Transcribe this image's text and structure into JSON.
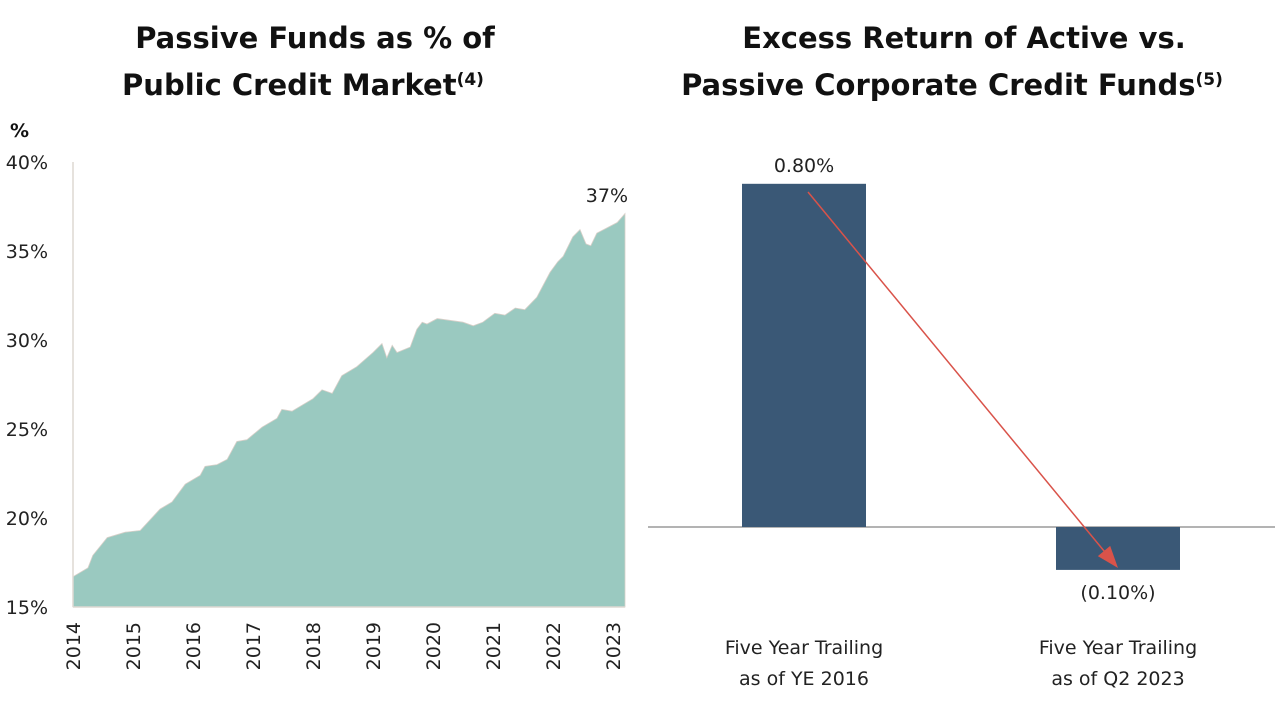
{
  "chart_data": [
    {
      "type": "area",
      "title": "Passive Funds as % of Public Credit Market",
      "title_lines": [
        "Passive Funds as % of",
        "Public Credit Market"
      ],
      "footnote": "(4)",
      "ylabel": "%",
      "xlabel": "",
      "ylim": [
        15,
        40
      ],
      "y_ticks": [
        "15%",
        "20%",
        "25%",
        "30%",
        "35%",
        "40%"
      ],
      "x_ticks": [
        "2014",
        "2015",
        "2016",
        "2017",
        "2018",
        "2019",
        "2020",
        "2021",
        "2022",
        "2023"
      ],
      "grid": false,
      "color": "#9AC9C0",
      "end_label": "37%",
      "x": [
        2014.0,
        2014.25,
        2014.33,
        2014.57,
        2014.87,
        2015.12,
        2015.45,
        2015.65,
        2015.87,
        2016.12,
        2016.2,
        2016.4,
        2016.57,
        2016.73,
        2016.9,
        2017.15,
        2017.4,
        2017.48,
        2017.65,
        2018.0,
        2018.15,
        2018.32,
        2018.48,
        2018.73,
        2019.0,
        2019.15,
        2019.23,
        2019.32,
        2019.4,
        2019.62,
        2019.73,
        2019.82,
        2019.9,
        2020.07,
        2020.5,
        2020.67,
        2020.83,
        2021.03,
        2021.2,
        2021.37,
        2021.53,
        2021.73,
        2021.95,
        2022.08,
        2022.17,
        2022.33,
        2022.45,
        2022.55,
        2022.63,
        2022.73,
        2022.9,
        2023.07,
        2023.2
      ],
      "values": [
        16.7,
        17.2,
        17.9,
        18.9,
        19.2,
        19.3,
        20.5,
        20.9,
        21.9,
        22.4,
        22.9,
        23.0,
        23.3,
        24.3,
        24.4,
        25.1,
        25.6,
        26.1,
        26.0,
        26.7,
        27.2,
        27.0,
        28.0,
        28.5,
        29.3,
        29.8,
        29.0,
        29.7,
        29.3,
        29.6,
        30.6,
        31.0,
        30.9,
        31.2,
        31.0,
        30.8,
        31.0,
        31.5,
        31.4,
        31.8,
        31.7,
        32.4,
        33.8,
        34.4,
        34.7,
        35.8,
        36.2,
        35.4,
        35.3,
        36.0,
        36.3,
        36.6,
        37.1
      ]
    },
    {
      "type": "bar",
      "title": "Excess Return of Active vs. Passive Corporate Credit Funds",
      "title_lines": [
        "Excess Return of Active vs.",
        "Passive Corporate Credit Funds"
      ],
      "footnote": "(5)",
      "categories": [
        [
          "Five Year Trailing",
          "as of YE 2016"
        ],
        [
          "Five Year Trailing",
          "as of Q2 2023"
        ]
      ],
      "values": [
        0.8,
        -0.1
      ],
      "data_labels": [
        "0.80%",
        "(0.10%)"
      ],
      "bar_color": "#3A5876",
      "arrow_color": "#D9534A",
      "ylim": [
        -0.25,
        0.9
      ],
      "grid": false
    }
  ]
}
